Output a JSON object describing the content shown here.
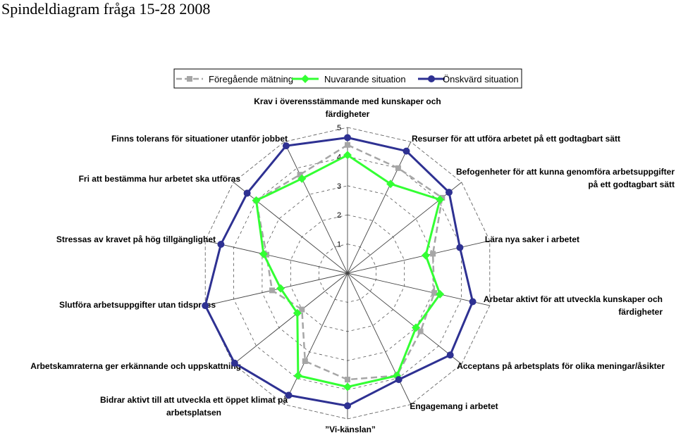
{
  "page": {
    "title": "Spindeldiagram fråga 15-28 2008"
  },
  "chart_data": {
    "type": "radar",
    "title": "Spindeldiagram fråga 15-28 2008",
    "r_ticks": [
      "1",
      "2",
      "3",
      "4",
      "5"
    ],
    "rlim": [
      0,
      5
    ],
    "legend_position": "top",
    "categories": [
      [
        "Krav i överensstämmande med kunskaper och",
        "färdigheter"
      ],
      [
        "Resurser för att utföra arbetet på ett godtagbart sätt"
      ],
      [
        "Befogenheter för att kunna genomföra arbetsuppgifter",
        "på ett godtagbart sätt"
      ],
      [
        "Lära nya saker i arbetet"
      ],
      [
        "Arbetar aktivt för att utveckla kunskaper och",
        "färdigheter"
      ],
      [
        "Acceptans på arbetsplats för olika meningar/åsikter"
      ],
      [
        "Engagemang i arbetet"
      ],
      [
        "”Vi-känslan”"
      ],
      [
        "Bidrar aktivt till att utveckla ett öppet klimat på",
        "arbetsplatsen"
      ],
      [
        "Arbetskamraterna ger erkännande och uppskattning"
      ],
      [
        "Slutföra arbetsuppgifter utan tidspress"
      ],
      [
        "Stressas av kravet på hög tillgänglighet"
      ],
      [
        "Fri att bestämma hur arbetet ska utföras"
      ],
      [
        "Finns tolerans för situationer utanför jobbet"
      ]
    ],
    "series": [
      {
        "name": "Föregående mätning",
        "color": "#a6a6a6",
        "style": "dashed",
        "marker": "square",
        "values": [
          4.4,
          4.0,
          4.15,
          3.0,
          3.05,
          3.2,
          3.9,
          3.65,
          3.35,
          2.0,
          2.65,
          2.85,
          4.0,
          3.75
        ]
      },
      {
        "name": "Nuvarande situation",
        "color": "#33ff33",
        "style": "solid",
        "marker": "diamond",
        "values": [
          4.05,
          3.4,
          4.05,
          2.75,
          3.25,
          3.0,
          3.9,
          3.9,
          3.9,
          2.2,
          2.35,
          2.95,
          4.0,
          3.6
        ]
      },
      {
        "name": "Önskvärd situation",
        "color": "#2e3192",
        "style": "solid",
        "marker": "circle",
        "values": [
          4.65,
          4.65,
          4.45,
          3.95,
          4.4,
          4.5,
          4.05,
          4.55,
          4.65,
          4.95,
          5.0,
          4.45,
          4.4,
          4.85
        ]
      }
    ]
  }
}
